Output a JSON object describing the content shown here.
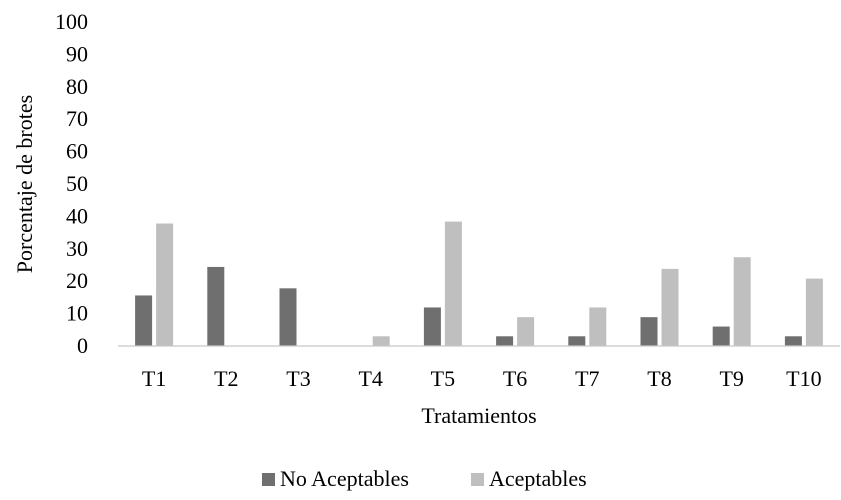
{
  "chart_data": {
    "type": "bar",
    "title": "",
    "xlabel": "Tratamientos",
    "ylabel": "Porcentaje de brotes",
    "ylim": [
      0,
      100
    ],
    "yticks": [
      0,
      10,
      20,
      30,
      40,
      50,
      60,
      70,
      80,
      90,
      100
    ],
    "grid": false,
    "legend_position": "bottom",
    "categories": [
      "T1",
      "T2",
      "T3",
      "T4",
      "T5",
      "T6",
      "T7",
      "T8",
      "T9",
      "T10"
    ],
    "series": [
      {
        "name": "No Aceptables",
        "color": "#6f6f6f",
        "values": [
          15.6,
          24.4,
          17.8,
          0,
          11.9,
          3.0,
          3.0,
          8.9,
          6.0,
          3.0
        ]
      },
      {
        "name": "Aceptables",
        "color": "#bfbfbf",
        "values": [
          37.8,
          0,
          0,
          3.0,
          38.4,
          8.9,
          11.9,
          23.8,
          27.4,
          20.8
        ]
      }
    ]
  }
}
